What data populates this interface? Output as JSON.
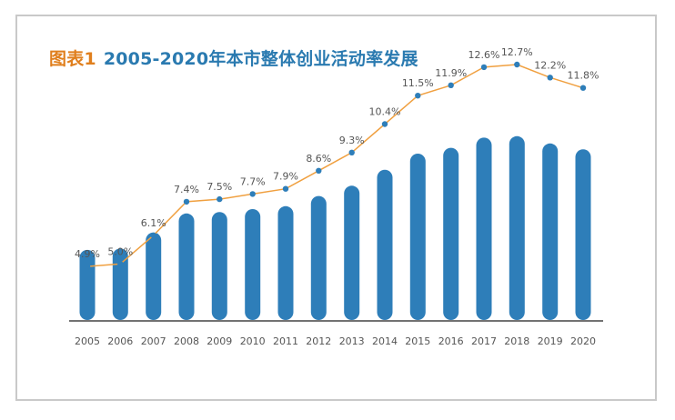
{
  "title": {
    "label": "图表1",
    "text": "2005-2020年本市整体创业活动率发展"
  },
  "colors": {
    "bar": "#2e7eb9",
    "line": "#f0a040",
    "point": "#2e7eb9",
    "label_accent": "#e07f1d",
    "title_text": "#2a7ab0"
  },
  "chart_data": {
    "type": "bar",
    "categories": [
      "2005",
      "2006",
      "2007",
      "2008",
      "2009",
      "2010",
      "2011",
      "2012",
      "2013",
      "2014",
      "2015",
      "2016",
      "2017",
      "2018",
      "2019",
      "2020"
    ],
    "values": [
      4.9,
      5.0,
      6.1,
      7.4,
      7.5,
      7.7,
      7.9,
      8.6,
      9.3,
      10.4,
      11.5,
      11.9,
      12.6,
      12.7,
      12.2,
      11.8
    ],
    "data_labels": [
      "4.9%",
      "5.0%",
      "6.1%",
      "7.4%",
      "7.5%",
      "7.7%",
      "7.9%",
      "8.6%",
      "9.3%",
      "10.4%",
      "11.5%",
      "11.9%",
      "12.6%",
      "12.7%",
      "12.2%",
      "11.8%"
    ],
    "overlay": "line",
    "unit": "%",
    "grid": false,
    "legend": "none"
  }
}
